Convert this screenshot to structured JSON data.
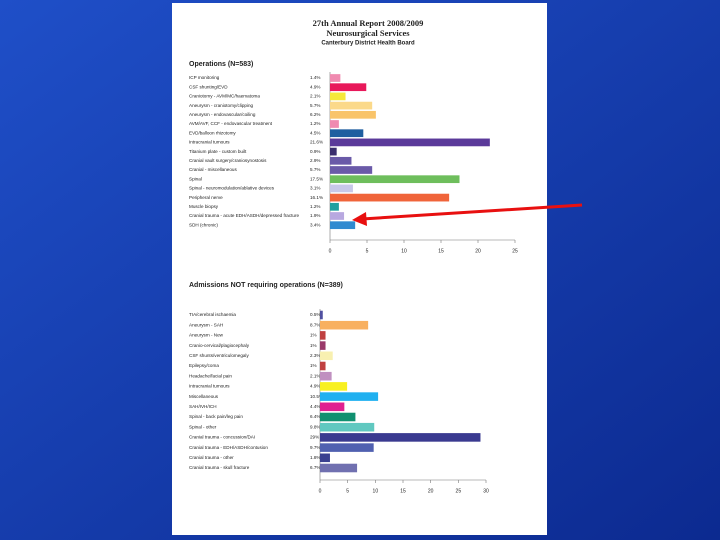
{
  "header": {
    "title": "27th Annual Report 2008/2009",
    "subtitle": "Neurosurgical Services",
    "organisation": "Canterbury District Health Board"
  },
  "chart_data": [
    {
      "type": "bar",
      "orientation": "horizontal",
      "title": "Operations (N=583)",
      "categories": [
        "ICP monitoring",
        "CSF shunting/EVD",
        "Craniotomy - AVM/MC/haematoma",
        "Aneurysm - craniotomy/clipping",
        "Aneurysm - endovascular/coiling",
        "AVM/AVF, CCF - endovascular treatment",
        "EVD/balloon rhizotomy",
        "Intracranial tumours",
        "Titanium plate - custom built",
        "Cranial vault surgery/craniosynostosis",
        "Cranial - miscellaneous",
        "Spinal",
        "Spinal - neuromodulation/ablative devices",
        "Peripheral nerve",
        "Muscle biopsy",
        "Cranial trauma - acute EDH/ASDH/depressed fracture",
        "SDH (chronic)"
      ],
      "values": [
        1.4,
        4.9,
        2.1,
        5.7,
        6.2,
        1.2,
        4.5,
        21.6,
        0.9,
        2.9,
        5.7,
        17.5,
        3.1,
        16.1,
        1.2,
        1.9,
        3.4
      ],
      "value_labels": [
        "1.4%",
        "4.9%",
        "2.1%",
        "5.7%",
        "6.2%",
        "1.2%",
        "4.5%",
        "21.6%",
        "0.9%",
        "2.9%",
        "5.7%",
        "17.5%",
        "3.1%",
        "16.1%",
        "1.2%",
        "1.9%",
        "3.4%"
      ],
      "colors": [
        "#f08ab0",
        "#e8185a",
        "#f5e83a",
        "#fbd98a",
        "#f9c46a",
        "#f08ab0",
        "#1f5fa0",
        "#5b3a9a",
        "#3a2e6e",
        "#6a5aa8",
        "#6a5aa8",
        "#6ebe5c",
        "#c8c8e8",
        "#f0643a",
        "#20a0a0",
        "#b8a8e0",
        "#2f8ad0"
      ],
      "xlim": [
        0,
        25
      ],
      "xticks": [
        0,
        5,
        10,
        15,
        20,
        25
      ]
    },
    {
      "type": "bar",
      "orientation": "horizontal",
      "title": "Admissions NOT requiring operations (N=389)",
      "categories": [
        "TIA/cerebral ischaemia",
        "Aneurysm - SAH",
        "Aneurysm - New",
        "Cranio-cervical/plagiocephaly",
        "CSF shunts/ventriculomegaly",
        "Epilepsy/coma",
        "Headache/facial pain",
        "Intracranial tumours",
        "Miscellaneous",
        "SAH/IVH/ICH",
        "Spinal - back pain/leg pain",
        "Spinal - other",
        "Cranial trauma - concussion/DAI",
        "Cranial trauma - EDH/ASDH/contusion",
        "Cranial trauma - other",
        "Cranial trauma - skull fracture"
      ],
      "values": [
        0.5,
        8.7,
        1,
        1,
        2.3,
        1,
        2.1,
        4.9,
        10.5,
        4.4,
        6.4,
        9.8,
        29,
        9.7,
        1.8,
        6.7
      ],
      "value_labels": [
        "0.5%",
        "8.7%",
        "1%",
        "1%",
        "2.3%",
        "1%",
        "2.1%",
        "4.9%",
        "10.5%",
        "4.4%",
        "6.4%",
        "9.8%",
        "29%",
        "9.7%",
        "1.8%",
        "6.7%"
      ],
      "colors": [
        "#5050a0",
        "#f8b060",
        "#c04040",
        "#9a3a6a",
        "#f8f0b0",
        "#c04040",
        "#c090c0",
        "#f8f020",
        "#20b0f0",
        "#e02090",
        "#109070",
        "#60c8c0",
        "#3a3a90",
        "#5060b0",
        "#3a4090",
        "#7070b0"
      ],
      "xlim": [
        0,
        30
      ],
      "xticks": [
        0,
        5,
        10,
        15,
        20,
        25,
        30
      ]
    }
  ]
}
